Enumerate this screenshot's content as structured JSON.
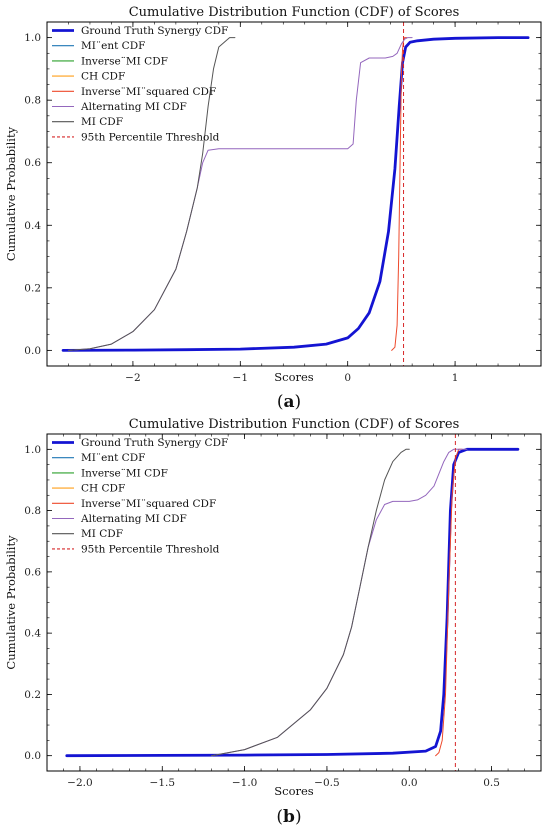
{
  "chart_data": [
    {
      "type": "line",
      "title": "Cumulative Distribution Function (CDF) of Scores",
      "xlabel": "Scores",
      "ylabel": "Cumulative Probability",
      "caption_letter": "a",
      "xlim": [
        -2.8,
        1.8
      ],
      "ylim": [
        -0.05,
        1.05
      ],
      "xticks": [
        -2,
        -1,
        0,
        1
      ],
      "yticks": [
        0.0,
        0.2,
        0.4,
        0.6,
        0.8,
        1.0
      ],
      "grid": false,
      "legend_position": "top-left",
      "threshold": 0.52,
      "series": [
        {
          "name": "Ground Truth Synergy CDF",
          "color": "#1414d2",
          "width": 2.8,
          "dash": "",
          "x": [
            -2.65,
            -2.0,
            -1.5,
            -1.0,
            -0.5,
            -0.2,
            0.0,
            0.1,
            0.2,
            0.3,
            0.38,
            0.44,
            0.48,
            0.51,
            0.54,
            0.58,
            0.65,
            0.8,
            1.0,
            1.4,
            1.68
          ],
          "y": [
            0.0,
            0.001,
            0.002,
            0.004,
            0.01,
            0.02,
            0.04,
            0.07,
            0.12,
            0.22,
            0.38,
            0.58,
            0.78,
            0.92,
            0.97,
            0.985,
            0.99,
            0.995,
            0.998,
            1.0,
            1.0
          ]
        },
        {
          "name": "MI¨ent CDF",
          "color": "#1f77b4",
          "width": 1.0,
          "dash": "",
          "x": [],
          "y": []
        },
        {
          "name": "Inverse¨MI CDF",
          "color": "#2ca02c",
          "width": 1.0,
          "dash": "",
          "x": [],
          "y": []
        },
        {
          "name": "CH CDF",
          "color": "#ff9f1a",
          "width": 1.0,
          "dash": "",
          "x": [],
          "y": []
        },
        {
          "name": "Inverse¨MI¨squared CDF",
          "color": "#ee4a2c",
          "width": 1.0,
          "dash": "",
          "x": [
            0.41,
            0.44,
            0.46,
            0.475,
            0.49,
            0.5,
            0.51,
            0.52,
            0.53,
            0.55
          ],
          "y": [
            0.0,
            0.01,
            0.08,
            0.3,
            0.65,
            0.88,
            0.96,
            0.99,
            1.0,
            1.0
          ]
        },
        {
          "name": "Alternating MI CDF",
          "color": "#9467bd",
          "width": 1.0,
          "dash": "",
          "x": [
            -2.6,
            -2.4,
            -2.2,
            -2.0,
            -1.8,
            -1.6,
            -1.5,
            -1.4,
            -1.35,
            -1.3,
            -1.2,
            -1.0,
            0.0,
            0.05,
            0.08,
            0.12,
            0.2,
            0.35,
            0.42,
            0.46,
            0.5,
            0.53,
            0.56,
            0.6
          ],
          "y": [
            0.0,
            0.005,
            0.02,
            0.06,
            0.13,
            0.26,
            0.38,
            0.52,
            0.6,
            0.64,
            0.645,
            0.645,
            0.645,
            0.66,
            0.8,
            0.92,
            0.935,
            0.935,
            0.94,
            0.95,
            0.98,
            0.995,
            1.0,
            1.0
          ]
        },
        {
          "name": "MI CDF",
          "color": "#555555",
          "width": 1.0,
          "dash": "",
          "x": [
            -2.6,
            -2.4,
            -2.2,
            -2.0,
            -1.8,
            -1.6,
            -1.5,
            -1.4,
            -1.35,
            -1.3,
            -1.25,
            -1.2,
            -1.1,
            -1.05
          ],
          "y": [
            0.0,
            0.005,
            0.02,
            0.06,
            0.13,
            0.26,
            0.38,
            0.52,
            0.63,
            0.78,
            0.9,
            0.97,
            1.0,
            1.0
          ]
        },
        {
          "name": "95th Percentile Threshold",
          "color": "#d62728",
          "width": 1.0,
          "dash": "4,3",
          "x": [],
          "y": []
        }
      ]
    },
    {
      "type": "line",
      "title": "Cumulative Distribution Function (CDF) of Scores",
      "xlabel": "Scores",
      "ylabel": "Cumulative Probability",
      "caption_letter": "b",
      "xlim": [
        -2.2,
        0.8
      ],
      "ylim": [
        -0.05,
        1.05
      ],
      "xticks": [
        -2.0,
        -1.5,
        -1.0,
        -0.5,
        0.0,
        0.5
      ],
      "yticks": [
        0.0,
        0.2,
        0.4,
        0.6,
        0.8,
        1.0
      ],
      "grid": false,
      "legend_position": "top-left",
      "threshold": 0.28,
      "series": [
        {
          "name": "Ground Truth Synergy CDF",
          "color": "#1414d2",
          "width": 2.8,
          "dash": "",
          "x": [
            -2.08,
            -1.5,
            -1.0,
            -0.5,
            -0.1,
            0.1,
            0.16,
            0.19,
            0.21,
            0.23,
            0.25,
            0.27,
            0.3,
            0.35,
            0.45,
            0.66
          ],
          "y": [
            0.0,
            0.001,
            0.002,
            0.004,
            0.008,
            0.015,
            0.03,
            0.08,
            0.2,
            0.45,
            0.8,
            0.95,
            0.99,
            1.0,
            1.0,
            1.0
          ]
        },
        {
          "name": "MI¨ent CDF",
          "color": "#1f77b4",
          "width": 1.0,
          "dash": "",
          "x": [],
          "y": []
        },
        {
          "name": "Inverse¨MI CDF",
          "color": "#2ca02c",
          "width": 1.0,
          "dash": "",
          "x": [],
          "y": []
        },
        {
          "name": "CH CDF",
          "color": "#ff9f1a",
          "width": 1.0,
          "dash": "",
          "x": [],
          "y": []
        },
        {
          "name": "Inverse¨MI¨squared CDF",
          "color": "#ee4a2c",
          "width": 1.0,
          "dash": "",
          "x": [
            0.16,
            0.18,
            0.2,
            0.22,
            0.24,
            0.26,
            0.28,
            0.3,
            0.32
          ],
          "y": [
            0.0,
            0.01,
            0.05,
            0.2,
            0.55,
            0.85,
            0.97,
            1.0,
            1.0
          ]
        },
        {
          "name": "Alternating MI CDF",
          "color": "#9467bd",
          "width": 1.0,
          "dash": "",
          "x": [
            -1.2,
            -1.0,
            -0.8,
            -0.6,
            -0.5,
            -0.4,
            -0.35,
            -0.3,
            -0.25,
            -0.2,
            -0.15,
            -0.1,
            -0.05,
            0.0,
            0.05,
            0.1,
            0.15,
            0.18,
            0.21,
            0.24,
            0.27,
            0.3,
            0.35
          ],
          "y": [
            0.0,
            0.02,
            0.06,
            0.15,
            0.22,
            0.33,
            0.42,
            0.55,
            0.68,
            0.77,
            0.82,
            0.83,
            0.83,
            0.83,
            0.835,
            0.85,
            0.88,
            0.92,
            0.96,
            0.99,
            1.0,
            1.0,
            1.0
          ]
        },
        {
          "name": "MI CDF",
          "color": "#555555",
          "width": 1.0,
          "dash": "",
          "x": [
            -1.2,
            -1.0,
            -0.8,
            -0.6,
            -0.5,
            -0.4,
            -0.35,
            -0.3,
            -0.25,
            -0.2,
            -0.15,
            -0.1,
            -0.05,
            -0.02,
            0.0
          ],
          "y": [
            0.0,
            0.02,
            0.06,
            0.15,
            0.22,
            0.33,
            0.42,
            0.55,
            0.68,
            0.8,
            0.9,
            0.96,
            0.99,
            1.0,
            1.0
          ]
        },
        {
          "name": "95th Percentile Threshold",
          "color": "#d62728",
          "width": 1.0,
          "dash": "4,3",
          "x": [],
          "y": []
        }
      ]
    }
  ]
}
